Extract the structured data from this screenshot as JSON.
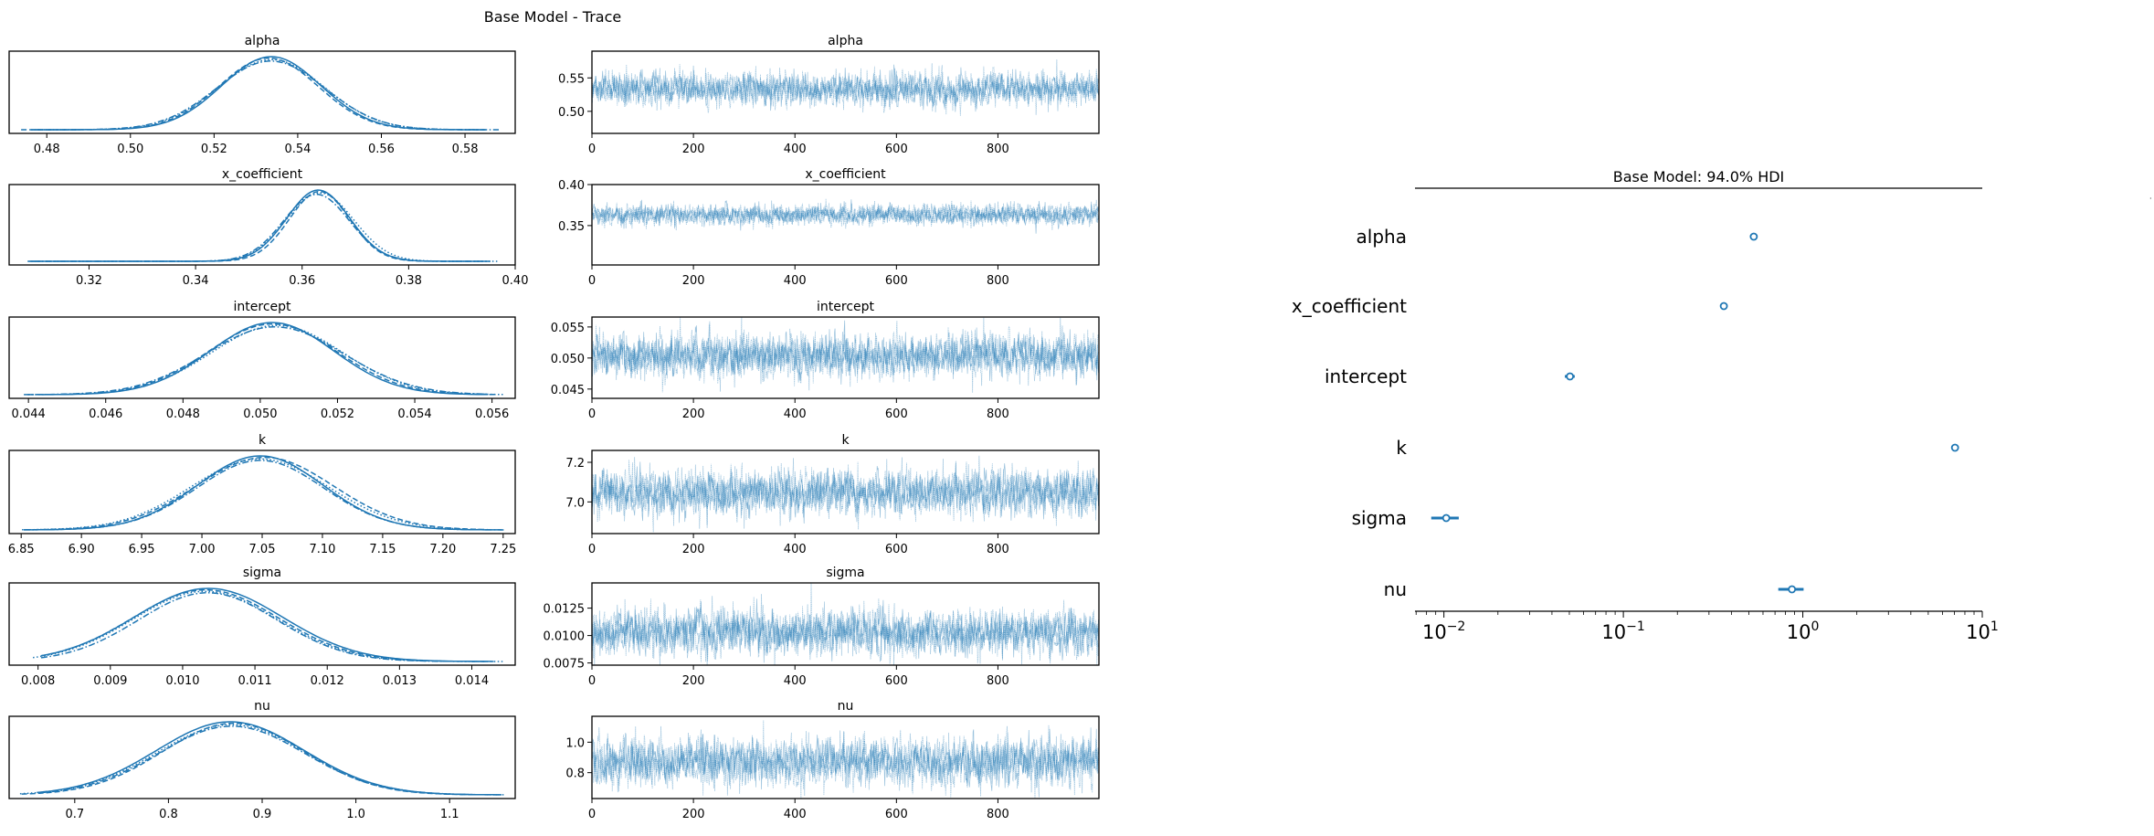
{
  "chart_data": {
    "title": "Base Model - Trace",
    "chain_count": 4,
    "line_color": "#1f77b4",
    "trace": {
      "type": "line",
      "xticks": [
        0,
        200,
        400,
        600,
        800
      ],
      "xlim": [
        0,
        999
      ],
      "variables": [
        {
          "name": "alpha",
          "mean": 0.533,
          "sd": 0.012,
          "kde_xlim": [
            0.471,
            0.592
          ],
          "kde_xticks": [
            "0.48",
            "0.50",
            "0.52",
            "0.54",
            "0.56",
            "0.58"
          ],
          "kde_xtick_values": [
            0.48,
            0.5,
            0.52,
            0.54,
            0.56,
            0.58
          ],
          "trace_ylim": [
            0.467,
            0.59
          ],
          "trace_yticks": [
            "0.50",
            "0.55"
          ],
          "trace_ytick_values": [
            0.5,
            0.55
          ]
        },
        {
          "name": "x_coefficient",
          "mean": 0.363,
          "sd": 0.006,
          "kde_xlim": [
            0.305,
            0.4
          ],
          "kde_xticks": [
            "0.32",
            "0.34",
            "0.36",
            "0.38",
            "0.40"
          ],
          "kde_xtick_values": [
            0.32,
            0.34,
            0.36,
            0.38,
            0.4
          ],
          "trace_ylim": [
            0.302,
            0.4
          ],
          "trace_yticks": [
            "0.35",
            "0.40"
          ],
          "trace_ytick_values": [
            0.35,
            0.4
          ]
        },
        {
          "name": "intercept",
          "mean": 0.0504,
          "sd": 0.0017,
          "kde_xlim": [
            0.0435,
            0.0566
          ],
          "kde_xticks": [
            "0.044",
            "0.046",
            "0.048",
            "0.050",
            "0.052",
            "0.054",
            "0.056"
          ],
          "kde_xtick_values": [
            0.044,
            0.046,
            0.048,
            0.05,
            0.052,
            0.054,
            0.056
          ],
          "trace_ylim": [
            0.0435,
            0.0566
          ],
          "trace_yticks": [
            "0.045",
            "0.050",
            "0.055"
          ],
          "trace_ytick_values": [
            0.045,
            0.05,
            0.055
          ]
        },
        {
          "name": "k",
          "mean": 7.05,
          "sd": 0.055,
          "kde_xlim": [
            6.84,
            7.26
          ],
          "kde_xticks": [
            "6.85",
            "6.90",
            "6.95",
            "7.00",
            "7.05",
            "7.10",
            "7.15",
            "7.20",
            "7.25"
          ],
          "kde_xtick_values": [
            6.85,
            6.9,
            6.95,
            7.0,
            7.05,
            7.1,
            7.15,
            7.2,
            7.25
          ],
          "trace_ylim": [
            6.84,
            7.26
          ],
          "trace_yticks": [
            "7.0",
            "7.2"
          ],
          "trace_ytick_values": [
            7.0,
            7.2
          ]
        },
        {
          "name": "sigma",
          "mean": 0.0103,
          "sd": 0.001,
          "kde_xlim": [
            0.0076,
            0.0146
          ],
          "kde_xticks": [
            "0.008",
            "0.009",
            "0.010",
            "0.011",
            "0.012",
            "0.013",
            "0.014"
          ],
          "kde_xtick_values": [
            0.008,
            0.009,
            0.01,
            0.011,
            0.012,
            0.013,
            0.014
          ],
          "trace_ylim": [
            0.0073,
            0.0148
          ],
          "trace_yticks": [
            "0.0075",
            "0.0100",
            "0.0125"
          ],
          "trace_ytick_values": [
            0.0075,
            0.01,
            0.0125
          ]
        },
        {
          "name": "nu",
          "mean": 0.87,
          "sd": 0.075,
          "kde_xlim": [
            0.63,
            1.17
          ],
          "kde_xticks": [
            "0.7",
            "0.8",
            "0.9",
            "1.0",
            "1.1"
          ],
          "kde_xtick_values": [
            0.7,
            0.8,
            0.9,
            1.0,
            1.1
          ],
          "trace_ylim": [
            0.63,
            1.17
          ],
          "trace_yticks": [
            "0.8",
            "1.0"
          ],
          "trace_ytick_values": [
            0.8,
            1.0
          ]
        }
      ]
    },
    "forest": {
      "type": "scatter",
      "title": "Base Model: 94.0% HDI",
      "xscale": "log",
      "xlim": [
        0.0069,
        10
      ],
      "xtick_base": "10",
      "xtick_exponents": [
        "−2",
        "−1",
        "0",
        "1"
      ],
      "xtick_values": [
        0.01,
        0.1,
        1,
        10
      ],
      "points": [
        {
          "label": "alpha",
          "mean": 0.533,
          "hdi_low": 0.511,
          "hdi_high": 0.555
        },
        {
          "label": "x_coefficient",
          "mean": 0.363,
          "hdi_low": 0.352,
          "hdi_high": 0.374
        },
        {
          "label": "intercept",
          "mean": 0.0504,
          "hdi_low": 0.0472,
          "hdi_high": 0.0536
        },
        {
          "label": "k",
          "mean": 7.05,
          "hdi_low": 6.95,
          "hdi_high": 7.15
        },
        {
          "label": "sigma",
          "mean": 0.0103,
          "hdi_low": 0.0085,
          "hdi_high": 0.0121
        },
        {
          "label": "nu",
          "mean": 0.87,
          "hdi_low": 0.73,
          "hdi_high": 1.01
        }
      ]
    }
  }
}
